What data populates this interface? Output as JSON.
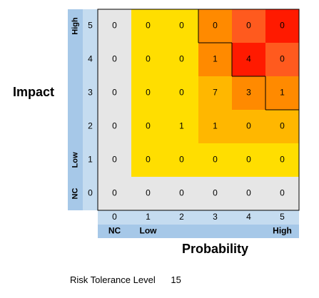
{
  "chart_data": {
    "type": "heatmap",
    "x_title": "Probability",
    "y_title": "Impact",
    "x_values": [
      0,
      1,
      2,
      3,
      4,
      5
    ],
    "y_values": [
      0,
      1,
      2,
      3,
      4,
      5
    ],
    "x_category_labels": [
      {
        "value": 0,
        "label": "NC"
      },
      {
        "value": 1,
        "label": "Low"
      },
      {
        "value": 5,
        "label": "High"
      }
    ],
    "y_category_labels": [
      {
        "value": 0,
        "label": "NC"
      },
      {
        "value": 1,
        "label": "Low"
      },
      {
        "value": 5,
        "label": "High"
      }
    ],
    "rows": [
      {
        "impact": 5,
        "values": [
          0,
          0,
          0,
          0,
          0,
          0
        ]
      },
      {
        "impact": 4,
        "values": [
          0,
          0,
          0,
          1,
          4,
          0
        ]
      },
      {
        "impact": 3,
        "values": [
          0,
          0,
          0,
          7,
          3,
          1
        ]
      },
      {
        "impact": 2,
        "values": [
          0,
          0,
          1,
          1,
          0,
          0
        ]
      },
      {
        "impact": 1,
        "values": [
          0,
          0,
          0,
          0,
          0,
          0
        ]
      },
      {
        "impact": 0,
        "values": [
          0,
          0,
          0,
          0,
          0,
          0
        ]
      }
    ],
    "cell_levels": [
      [
        "nc",
        "yellow",
        "yellow",
        "orange",
        "deep-orange",
        "red"
      ],
      [
        "nc",
        "yellow",
        "yellow",
        "orange",
        "red",
        "deep-orange"
      ],
      [
        "nc",
        "yellow",
        "yellow",
        "light-orange",
        "orange",
        "orange"
      ],
      [
        "nc",
        "yellow",
        "yellow",
        "light-orange",
        "light-orange",
        "light-orange"
      ],
      [
        "nc",
        "yellow",
        "yellow",
        "yellow",
        "yellow",
        "yellow"
      ],
      [
        "nc",
        "nc",
        "nc",
        "nc",
        "nc",
        "nc"
      ]
    ],
    "level_colors": {
      "nc": "#e6e6e6",
      "yellow": "#ffde00",
      "light-orange": "#ffb700",
      "orange": "#ff8a00",
      "deep-orange": "#ff5a1e",
      "red": "#ff1a00",
      "axis-strip": "#a6c8e8"
    },
    "tolerance_boundary_cells": [
      [
        0,
        3
      ],
      [
        0,
        4
      ],
      [
        0,
        5
      ],
      [
        1,
        4
      ],
      [
        1,
        5
      ],
      [
        2,
        5
      ]
    ]
  },
  "labels": {
    "impact_title": "Impact",
    "probability_title": "Probability",
    "tolerance_label": "Risk Tolerance Level",
    "tolerance_value": "15"
  }
}
